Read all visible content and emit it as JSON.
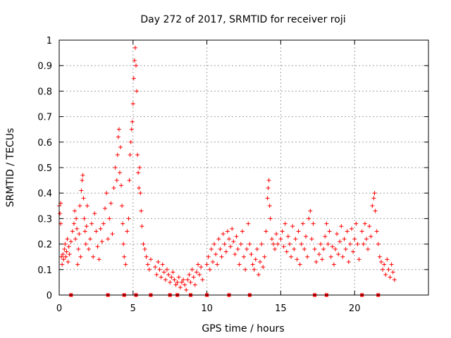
{
  "chart_data": {
    "type": "scatter",
    "title": "Day 272 of 2017, SRMTID for receiver roji",
    "xlabel": "GPS time / hours",
    "ylabel": "SRMTID / TECUs",
    "xlim": [
      0,
      25
    ],
    "ylim": [
      0,
      1
    ],
    "xticks": [
      0,
      5,
      10,
      15,
      20
    ],
    "xtick_labels": [
      "0",
      "5",
      "10",
      "15",
      "20"
    ],
    "yticks": [
      0,
      0.1,
      0.2,
      0.3,
      0.4,
      0.5,
      0.6,
      0.7,
      0.8,
      0.9,
      1
    ],
    "ytick_labels": [
      "0",
      "0.1",
      "0.2",
      "0.3",
      "0.4",
      "0.5",
      "0.6",
      "0.7",
      "0.8",
      "0.9",
      "1"
    ],
    "grid": true,
    "marker": "+",
    "series_color": "#ff0000",
    "series": [
      {
        "name": "SRMTID",
        "points": [
          [
            0.0,
            0.35
          ],
          [
            0.05,
            0.32
          ],
          [
            0.1,
            0.28
          ],
          [
            0.1,
            0.36
          ],
          [
            0.15,
            0.15
          ],
          [
            0.2,
            0.12
          ],
          [
            0.25,
            0.16
          ],
          [
            0.3,
            0.14
          ],
          [
            0.35,
            0.18
          ],
          [
            0.4,
            0.2
          ],
          [
            0.45,
            0.15
          ],
          [
            0.5,
            0.17
          ],
          [
            0.55,
            0.22
          ],
          [
            0.6,
            0.13
          ],
          [
            0.65,
            0.19
          ],
          [
            0.7,
            0.16
          ],
          [
            0.8,
            0.21
          ],
          [
            0.9,
            0.25
          ],
          [
            1.0,
            0.28
          ],
          [
            1.05,
            0.33
          ],
          [
            1.1,
            0.22
          ],
          [
            1.15,
            0.3
          ],
          [
            1.2,
            0.26
          ],
          [
            1.25,
            0.12
          ],
          [
            1.3,
            0.18
          ],
          [
            1.35,
            0.24
          ],
          [
            1.4,
            0.35
          ],
          [
            1.45,
            0.15
          ],
          [
            1.5,
            0.41
          ],
          [
            1.55,
            0.45
          ],
          [
            1.6,
            0.47
          ],
          [
            1.65,
            0.38
          ],
          [
            1.7,
            0.3
          ],
          [
            1.75,
            0.25
          ],
          [
            1.8,
            0.2
          ],
          [
            1.85,
            0.27
          ],
          [
            1.9,
            0.35
          ],
          [
            2.0,
            0.18
          ],
          [
            2.1,
            0.22
          ],
          [
            2.2,
            0.28
          ],
          [
            2.3,
            0.15
          ],
          [
            2.4,
            0.32
          ],
          [
            2.5,
            0.25
          ],
          [
            2.6,
            0.19
          ],
          [
            2.7,
            0.14
          ],
          [
            2.8,
            0.26
          ],
          [
            2.9,
            0.21
          ],
          [
            3.0,
            0.28
          ],
          [
            3.1,
            0.34
          ],
          [
            3.2,
            0.4
          ],
          [
            3.3,
            0.22
          ],
          [
            3.4,
            0.3
          ],
          [
            3.5,
            0.36
          ],
          [
            3.6,
            0.24
          ],
          [
            3.7,
            0.42
          ],
          [
            3.8,
            0.5
          ],
          [
            3.9,
            0.45
          ],
          [
            3.95,
            0.55
          ],
          [
            4.0,
            0.62
          ],
          [
            4.05,
            0.65
          ],
          [
            4.1,
            0.48
          ],
          [
            4.15,
            0.58
          ],
          [
            4.2,
            0.43
          ],
          [
            4.25,
            0.35
          ],
          [
            4.3,
            0.28
          ],
          [
            4.35,
            0.2
          ],
          [
            4.4,
            0.15
          ],
          [
            4.5,
            0.12
          ],
          [
            4.6,
            0.25
          ],
          [
            4.7,
            0.3
          ],
          [
            4.75,
            0.45
          ],
          [
            4.8,
            0.55
          ],
          [
            4.85,
            0.6
          ],
          [
            4.9,
            0.65
          ],
          [
            4.95,
            0.68
          ],
          [
            5.0,
            0.75
          ],
          [
            5.05,
            0.85
          ],
          [
            5.1,
            0.92
          ],
          [
            5.15,
            0.97
          ],
          [
            5.2,
            0.9
          ],
          [
            5.25,
            0.8
          ],
          [
            5.3,
            0.55
          ],
          [
            5.35,
            0.48
          ],
          [
            5.4,
            0.42
          ],
          [
            5.45,
            0.5
          ],
          [
            5.5,
            0.4
          ],
          [
            5.55,
            0.33
          ],
          [
            5.6,
            0.27
          ],
          [
            5.7,
            0.2
          ],
          [
            5.8,
            0.18
          ],
          [
            5.9,
            0.15
          ],
          [
            6.0,
            0.12
          ],
          [
            6.1,
            0.1
          ],
          [
            6.2,
            0.14
          ],
          [
            6.5,
            0.11
          ],
          [
            6.6,
            0.08
          ],
          [
            6.7,
            0.13
          ],
          [
            6.8,
            0.1
          ],
          [
            6.9,
            0.07
          ],
          [
            7.0,
            0.12
          ],
          [
            7.1,
            0.09
          ],
          [
            7.2,
            0.06
          ],
          [
            7.3,
            0.1
          ],
          [
            7.4,
            0.08
          ],
          [
            7.5,
            0.05
          ],
          [
            7.6,
            0.07
          ],
          [
            7.7,
            0.09
          ],
          [
            7.8,
            0.06
          ],
          [
            7.9,
            0.04
          ],
          [
            8.0,
            0.05
          ],
          [
            8.1,
            0.07
          ],
          [
            8.2,
            0.03
          ],
          [
            8.3,
            0.05
          ],
          [
            8.4,
            0.06
          ],
          [
            8.5,
            0.04
          ],
          [
            8.6,
            0.02
          ],
          [
            8.7,
            0.06
          ],
          [
            8.8,
            0.08
          ],
          [
            8.9,
            0.05
          ],
          [
            9.0,
            0.1
          ],
          [
            9.1,
            0.07
          ],
          [
            9.2,
            0.04
          ],
          [
            9.3,
            0.09
          ],
          [
            9.4,
            0.12
          ],
          [
            9.5,
            0.08
          ],
          [
            9.6,
            0.11
          ],
          [
            9.7,
            0.06
          ],
          [
            10.0,
            0.12
          ],
          [
            10.1,
            0.15
          ],
          [
            10.2,
            0.1
          ],
          [
            10.3,
            0.18
          ],
          [
            10.4,
            0.13
          ],
          [
            10.5,
            0.2
          ],
          [
            10.6,
            0.16
          ],
          [
            10.7,
            0.12
          ],
          [
            10.8,
            0.22
          ],
          [
            10.9,
            0.18
          ],
          [
            11.0,
            0.15
          ],
          [
            11.1,
            0.24
          ],
          [
            11.2,
            0.2
          ],
          [
            11.3,
            0.17
          ],
          [
            11.4,
            0.25
          ],
          [
            11.5,
            0.22
          ],
          [
            11.6,
            0.19
          ],
          [
            11.7,
            0.26
          ],
          [
            11.8,
            0.21
          ],
          [
            11.9,
            0.16
          ],
          [
            12.0,
            0.23
          ],
          [
            12.1,
            0.18
          ],
          [
            12.2,
            0.12
          ],
          [
            12.3,
            0.2
          ],
          [
            12.4,
            0.25
          ],
          [
            12.5,
            0.15
          ],
          [
            12.6,
            0.1
          ],
          [
            12.7,
            0.18
          ],
          [
            12.8,
            0.28
          ],
          [
            12.9,
            0.2
          ],
          [
            13.0,
            0.16
          ],
          [
            13.1,
            0.12
          ],
          [
            13.2,
            0.1
          ],
          [
            13.3,
            0.14
          ],
          [
            13.4,
            0.18
          ],
          [
            13.5,
            0.08
          ],
          [
            13.6,
            0.13
          ],
          [
            13.7,
            0.2
          ],
          [
            13.8,
            0.11
          ],
          [
            13.9,
            0.15
          ],
          [
            14.0,
            0.25
          ],
          [
            14.1,
            0.38
          ],
          [
            14.15,
            0.42
          ],
          [
            14.2,
            0.45
          ],
          [
            14.25,
            0.35
          ],
          [
            14.3,
            0.3
          ],
          [
            14.4,
            0.22
          ],
          [
            14.5,
            0.2
          ],
          [
            14.6,
            0.18
          ],
          [
            14.7,
            0.24
          ],
          [
            14.8,
            0.2
          ],
          [
            15.0,
            0.22
          ],
          [
            15.1,
            0.25
          ],
          [
            15.2,
            0.19
          ],
          [
            15.3,
            0.28
          ],
          [
            15.4,
            0.17
          ],
          [
            15.5,
            0.23
          ],
          [
            15.6,
            0.2
          ],
          [
            15.7,
            0.15
          ],
          [
            15.8,
            0.27
          ],
          [
            15.9,
            0.18
          ],
          [
            16.0,
            0.22
          ],
          [
            16.1,
            0.14
          ],
          [
            16.2,
            0.25
          ],
          [
            16.3,
            0.12
          ],
          [
            16.4,
            0.2
          ],
          [
            16.5,
            0.28
          ],
          [
            16.6,
            0.18
          ],
          [
            16.7,
            0.23
          ],
          [
            16.8,
            0.15
          ],
          [
            16.9,
            0.3
          ],
          [
            17.0,
            0.33
          ],
          [
            17.1,
            0.22
          ],
          [
            17.2,
            0.28
          ],
          [
            17.3,
            0.18
          ],
          [
            17.4,
            0.13
          ],
          [
            17.6,
            0.16
          ],
          [
            17.7,
            0.2
          ],
          [
            17.8,
            0.14
          ],
          [
            17.9,
            0.18
          ],
          [
            18.0,
            0.23
          ],
          [
            18.1,
            0.28
          ],
          [
            18.2,
            0.2
          ],
          [
            18.3,
            0.25
          ],
          [
            18.4,
            0.15
          ],
          [
            18.5,
            0.19
          ],
          [
            18.6,
            0.12
          ],
          [
            18.7,
            0.18
          ],
          [
            18.8,
            0.24
          ],
          [
            18.9,
            0.16
          ],
          [
            19.0,
            0.21
          ],
          [
            19.1,
            0.27
          ],
          [
            19.2,
            0.15
          ],
          [
            19.3,
            0.22
          ],
          [
            19.4,
            0.18
          ],
          [
            19.5,
            0.25
          ],
          [
            19.6,
            0.13
          ],
          [
            19.7,
            0.2
          ],
          [
            19.8,
            0.26
          ],
          [
            19.9,
            0.17
          ],
          [
            20.0,
            0.22
          ],
          [
            20.1,
            0.28
          ],
          [
            20.2,
            0.2
          ],
          [
            20.3,
            0.14
          ],
          [
            20.5,
            0.25
          ],
          [
            20.6,
            0.2
          ],
          [
            20.7,
            0.28
          ],
          [
            20.8,
            0.22
          ],
          [
            20.9,
            0.18
          ],
          [
            21.0,
            0.27
          ],
          [
            21.1,
            0.23
          ],
          [
            21.2,
            0.35
          ],
          [
            21.3,
            0.38
          ],
          [
            21.35,
            0.4
          ],
          [
            21.4,
            0.33
          ],
          [
            21.5,
            0.25
          ],
          [
            21.6,
            0.2
          ],
          [
            21.7,
            0.15
          ],
          [
            21.8,
            0.13
          ],
          [
            21.9,
            0.1
          ],
          [
            22.0,
            0.12
          ],
          [
            22.1,
            0.08
          ],
          [
            22.2,
            0.14
          ],
          [
            22.3,
            0.1
          ],
          [
            22.4,
            0.07
          ],
          [
            22.5,
            0.12
          ],
          [
            22.6,
            0.09
          ],
          [
            22.7,
            0.06
          ]
        ]
      }
    ],
    "gap_markers_x": [
      0.8,
      3.3,
      4.4,
      5.2,
      6.2,
      7.5,
      8.0,
      8.9,
      10.0,
      11.5,
      12.9,
      17.3,
      18.1,
      20.5,
      21.6
    ]
  }
}
